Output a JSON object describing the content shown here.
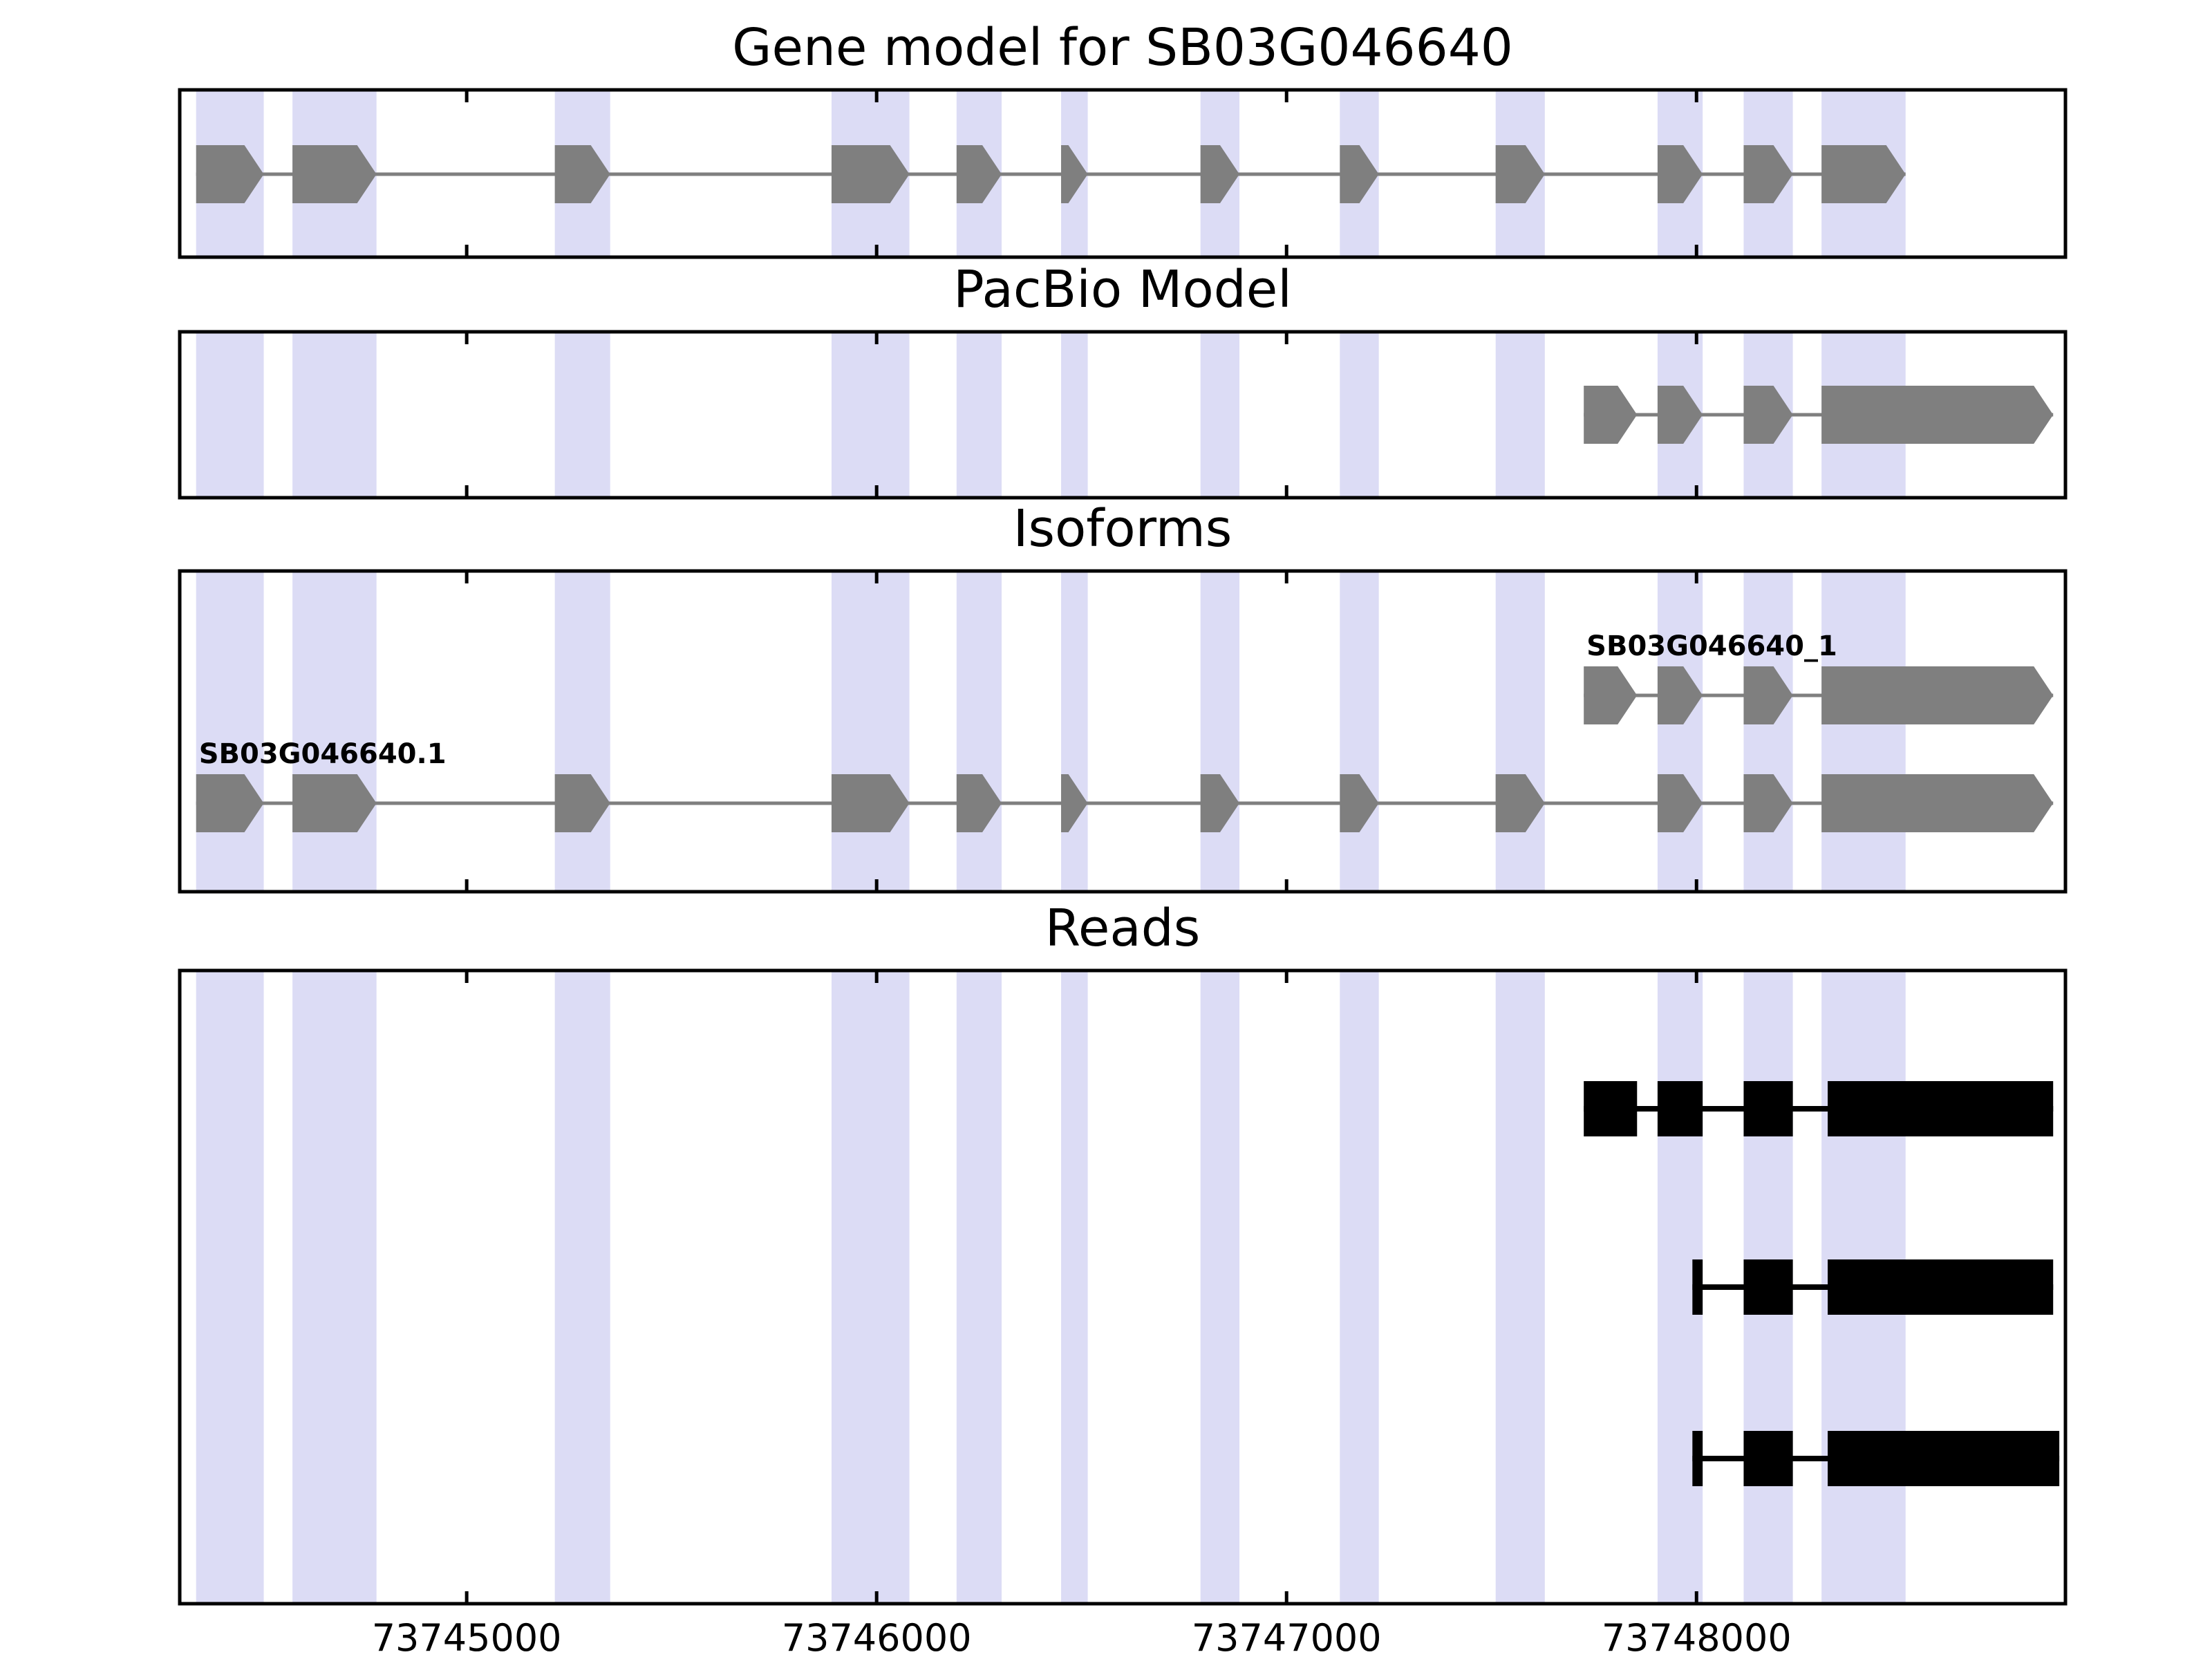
{
  "figure": {
    "background_color": "#ffffff",
    "highlight_band_color": "#dcdcf5",
    "exon_color": "#7f7f7f",
    "read_color": "#000000",
    "axis_color": "#000000"
  },
  "chart_data": {
    "type": "gene-model-tracks",
    "x_axis": {
      "range": [
        73744300,
        73748900
      ],
      "ticks": [
        73745000,
        73746000,
        73747000,
        73748000
      ],
      "tick_labels": [
        "73745000",
        "73746000",
        "73747000",
        "73748000"
      ]
    },
    "highlight_bands": [
      [
        73744340,
        73744505
      ],
      [
        73744575,
        73744780
      ],
      [
        73745215,
        73745350
      ],
      [
        73745890,
        73746080
      ],
      [
        73746195,
        73746305
      ],
      [
        73746450,
        73746515
      ],
      [
        73746790,
        73746885
      ],
      [
        73747130,
        73747225
      ],
      [
        73747510,
        73747630
      ],
      [
        73747905,
        73748015
      ],
      [
        73748115,
        73748235
      ],
      [
        73748305,
        73748510
      ]
    ],
    "panels": [
      {
        "id": "gene-model",
        "title": "Gene model for SB03G046640",
        "features": [
          {
            "label": "",
            "kind": "arrow",
            "color": "#7f7f7f",
            "row": 0,
            "exons": [
              [
                73744340,
                73744505
              ],
              [
                73744575,
                73744780
              ],
              [
                73745215,
                73745350
              ],
              [
                73745890,
                73746080
              ],
              [
                73746195,
                73746305
              ],
              [
                73746450,
                73746515
              ],
              [
                73746790,
                73746885
              ],
              [
                73747130,
                73747225
              ],
              [
                73747510,
                73747630
              ],
              [
                73747905,
                73748015
              ],
              [
                73748115,
                73748235
              ],
              [
                73748305,
                73748510
              ]
            ]
          }
        ]
      },
      {
        "id": "pacbio-model",
        "title": "PacBio Model",
        "features": [
          {
            "label": "",
            "kind": "arrow",
            "color": "#7f7f7f",
            "row": 0,
            "exons": [
              [
                73747725,
                73747855
              ],
              [
                73747905,
                73748015
              ],
              [
                73748115,
                73748235
              ],
              [
                73748305,
                73748870
              ]
            ]
          }
        ]
      },
      {
        "id": "isoforms",
        "title": "Isoforms",
        "features": [
          {
            "label": "SB03G046640_1",
            "kind": "arrow",
            "color": "#7f7f7f",
            "row": 0,
            "exons": [
              [
                73747725,
                73747855
              ],
              [
                73747905,
                73748015
              ],
              [
                73748115,
                73748235
              ],
              [
                73748305,
                73748870
              ]
            ]
          },
          {
            "label": "SB03G046640.1",
            "kind": "arrow",
            "color": "#7f7f7f",
            "row": 1,
            "exons": [
              [
                73744340,
                73744505
              ],
              [
                73744575,
                73744780
              ],
              [
                73745215,
                73745350
              ],
              [
                73745890,
                73746080
              ],
              [
                73746195,
                73746305
              ],
              [
                73746450,
                73746515
              ],
              [
                73746790,
                73746885
              ],
              [
                73747130,
                73747225
              ],
              [
                73747510,
                73747630
              ],
              [
                73747905,
                73748015
              ],
              [
                73748115,
                73748235
              ],
              [
                73748305,
                73748870
              ]
            ]
          }
        ]
      },
      {
        "id": "reads",
        "title": "Reads",
        "features": [
          {
            "label": "",
            "kind": "block",
            "color": "#000000",
            "row": 0,
            "exons": [
              [
                73747725,
                73747855
              ],
              [
                73747905,
                73748015
              ],
              [
                73748115,
                73748235
              ],
              [
                73748320,
                73748870
              ]
            ]
          },
          {
            "label": "",
            "kind": "block",
            "color": "#000000",
            "row": 1,
            "exons": [
              [
                73747990,
                73748015
              ],
              [
                73748115,
                73748235
              ],
              [
                73748320,
                73748870
              ]
            ]
          },
          {
            "label": "",
            "kind": "block",
            "color": "#000000",
            "row": 2,
            "exons": [
              [
                73747990,
                73748015
              ],
              [
                73748115,
                73748235
              ],
              [
                73748320,
                73748885
              ]
            ]
          }
        ]
      }
    ]
  }
}
